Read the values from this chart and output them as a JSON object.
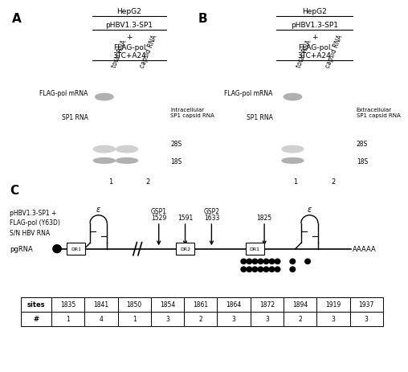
{
  "panel_A_label": "A",
  "panel_B_label": "B",
  "panel_C_label": "C",
  "title_line1": "HepG2",
  "title_line2": "pHBV1.3-SP1",
  "title_line3": "+",
  "title_line4": "FLAG-pol",
  "treatment": "3TC+A24",
  "col1": "total RNA",
  "col2": "capsid RNA",
  "flag_pol_mrna_label": "FLAG-pol mRNA",
  "sp1_rna_label": "SP1 RNA",
  "intracellular_label": "Intracellular\nSP1 capsid RNA",
  "extracellular_label": "Extracellular\nSP1 capsid RNA",
  "rrna_28s": "28S",
  "rrna_18s": "18S",
  "lane1": "1",
  "lane2": "2",
  "pgRNA_label": "pgRNA",
  "DR1_label": "DR1",
  "DR2_label": "DR2",
  "epsilon_label": "ε",
  "AAAAA_label": "AAAAA",
  "GSP1_label": "GSP1",
  "GSP2_label": "GSP2",
  "pos_1529": "1529",
  "pos_1591": "1591",
  "pos_1633": "1633",
  "pos_1825": "1825",
  "diagram_text": "pHBV1.3-SP1 +\nFLAG-pol (Y63D)\nS/N HBV RNA",
  "table_sites": [
    1835,
    1841,
    1850,
    1854,
    1861,
    1864,
    1872,
    1894,
    1919,
    1937
  ],
  "table_counts": [
    1,
    4,
    1,
    3,
    2,
    3,
    3,
    2,
    3,
    3
  ],
  "table_row1": "sites",
  "table_row2": "#",
  "bg_color": "#ffffff",
  "gel_dark": "#2a2a2a",
  "rrna_dark": "#1a1a1a",
  "text_color": "#000000",
  "band_white": "#ffffff",
  "band_gray1": "#c8c8c8",
  "band_gray2": "#a0a0a0",
  "band_faint": "#d8d8d8"
}
